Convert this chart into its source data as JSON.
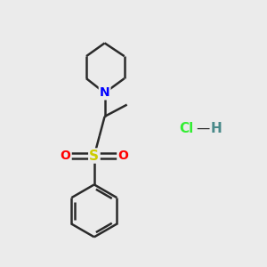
{
  "background_color": "#ebebeb",
  "bond_color": "#2a2a2a",
  "N_color": "#0000ff",
  "S_color": "#cccc00",
  "O_color": "#ff0000",
  "Cl_color": "#33ee33",
  "H_color": "#4a8a8a",
  "line_width": 1.8,
  "figsize": [
    3.0,
    3.0
  ],
  "dpi": 100,
  "xlim": [
    0,
    10
  ],
  "ylim": [
    0,
    10
  ]
}
